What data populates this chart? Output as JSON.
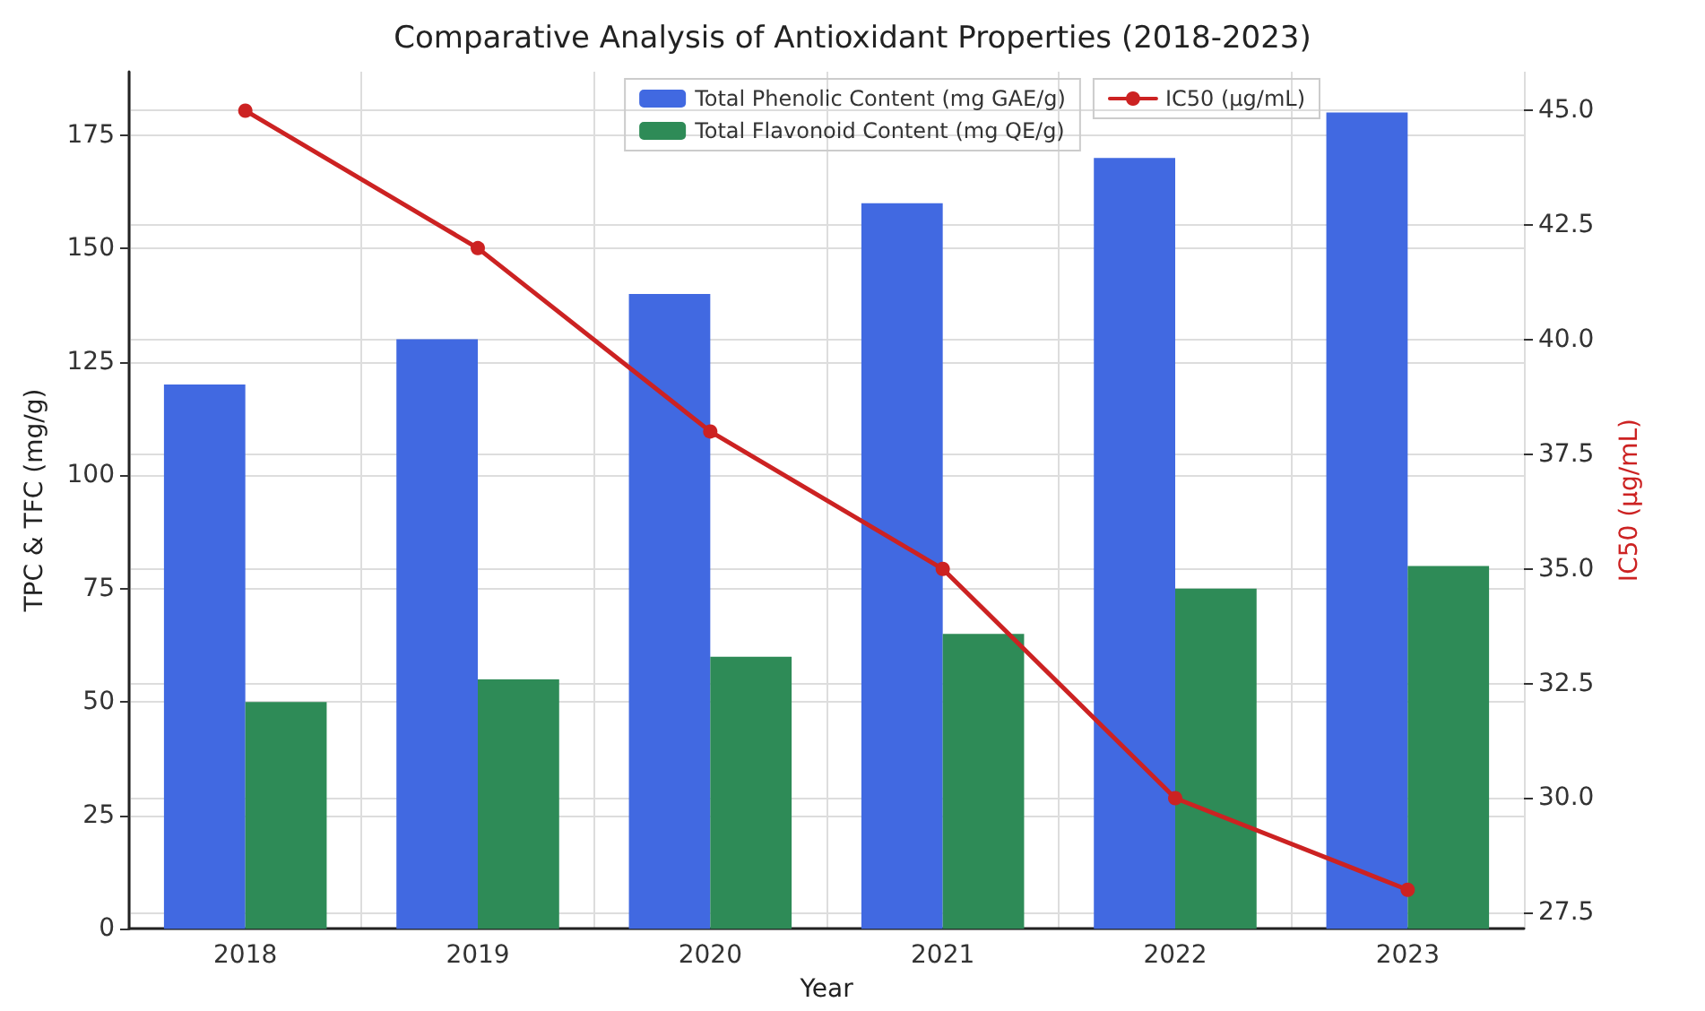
{
  "chart_data": {
    "type": "bar",
    "title": "Comparative Analysis of Antioxidant Properties (2018-2023)",
    "xlabel": "Year",
    "ylabel": "TPC & TFC (mg/g)",
    "y2label": "IC50 (μg/mL)",
    "categories": [
      "2018",
      "2019",
      "2020",
      "2021",
      "2022",
      "2023"
    ],
    "series": [
      {
        "name": "Total Phenolic Content (mg GAE/g)",
        "color": "#4169e1",
        "values": [
          120,
          130,
          140,
          160,
          170,
          180
        ]
      },
      {
        "name": "Total Flavonoid Content (mg QE/g)",
        "color": "#2e8b57",
        "values": [
          50,
          55,
          60,
          65,
          75,
          80
        ]
      },
      {
        "name": "IC50 (μg/mL)",
        "type": "line",
        "axis": "y2",
        "color": "#cc2222",
        "marker": "circle",
        "line_style": "solid",
        "values": [
          45,
          42,
          38,
          35,
          30,
          28
        ]
      }
    ],
    "ylim": [
      0,
      189
    ],
    "yticks": [
      0,
      25,
      50,
      75,
      100,
      125,
      150,
      175
    ],
    "y2lim": [
      27.15,
      45.85
    ],
    "y2ticks": [
      27.5,
      {
        "value": 30,
        "label": "30.0"
      },
      32.5,
      {
        "value": 35,
        "label": "35.0"
      },
      37.5,
      {
        "value": 40,
        "label": "40.0"
      },
      42.5,
      {
        "value": 45,
        "label": "45.0"
      }
    ],
    "grid": true,
    "legend": "top"
  }
}
